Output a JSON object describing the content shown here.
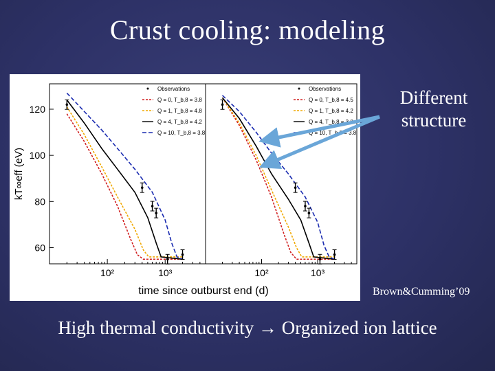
{
  "slide": {
    "title": "Crust cooling: modeling",
    "annotation_line1": "Different",
    "annotation_line2": "structure",
    "credit": "Brown&Cumming’09",
    "footer_left": "High thermal conductivity",
    "footer_arrow": "→",
    "footer_right": "Organized ion lattice",
    "arrow_color": "#6aa6d8"
  },
  "chart_data": [
    {
      "type": "line",
      "panel": "left",
      "xlabel": "time since outburst end (d)",
      "ylabel": "kT∞eff (eV)",
      "x_scale": "log",
      "xlim": [
        10,
        5000
      ],
      "ylim": [
        53,
        131
      ],
      "yticks": [
        60,
        80,
        100,
        120
      ],
      "xticks": [
        "10²",
        "10³"
      ],
      "legend_position": "top-right",
      "legend": [
        "Observations",
        "Q = 0, T_b,8 = 3.8",
        "Q = 1, T_b,8 = 4.8",
        "Q = 4, T_b,8 = 4.2",
        "Q = 10, T_b,8 = 3.8"
      ],
      "series": [
        {
          "name": "Q = 0, T_b,8 = 3.8",
          "color": "#d11f1f",
          "dash": "3,2",
          "x": [
            20,
            40,
            80,
            150,
            250,
            330,
            420,
            2000
          ],
          "y": [
            118,
            106,
            92,
            78,
            64,
            57,
            55,
            55
          ]
        },
        {
          "name": "Q = 1, T_b,8 = 4.8",
          "color": "#f0a800",
          "dash": "3,2",
          "x": [
            20,
            40,
            80,
            150,
            300,
            420,
            520,
            2000
          ],
          "y": [
            121,
            109,
            95,
            82,
            68,
            59,
            56,
            56
          ]
        },
        {
          "name": "Q = 4, T_b,8 = 4.2",
          "color": "#000000",
          "dash": "",
          "x": [
            20,
            40,
            80,
            150,
            300,
            500,
            700,
            850,
            2000
          ],
          "y": [
            124,
            114,
            103,
            94,
            84,
            73,
            62,
            56,
            55
          ]
        },
        {
          "name": "Q = 10, T_b,8 = 3.8",
          "color": "#1a2bb0",
          "dash": "6,3",
          "x": [
            20,
            40,
            80,
            150,
            300,
            600,
            1000,
            1300,
            1600,
            2000
          ],
          "y": [
            127,
            119,
            111,
            103,
            94,
            84,
            72,
            62,
            56,
            55
          ]
        }
      ],
      "observations": {
        "x": [
          20,
          400,
          600,
          700,
          1100,
          2000
        ],
        "y": [
          122,
          86,
          78,
          75,
          55,
          57
        ]
      }
    },
    {
      "type": "line",
      "panel": "right",
      "xlabel": "time since outburst end (d)",
      "ylabel": "",
      "x_scale": "log",
      "xlim": [
        10,
        5000
      ],
      "ylim": [
        53,
        131
      ],
      "xticks": [
        "10²",
        "10³"
      ],
      "legend_position": "top-right",
      "legend": [
        "Observations",
        "Q = 0, T_b,8 = 4.5",
        "Q = 1, T_b,8 = 4.2",
        "Q = 4, T_b,8 = 3.8",
        "Q = 10, T_b,8 = 3.8"
      ],
      "series": [
        {
          "name": "Q = 0, T_b,8 = 4.5",
          "color": "#d11f1f",
          "dash": "3,2",
          "x": [
            20,
            40,
            80,
            150,
            250,
            330,
            420,
            2000
          ],
          "y": [
            125,
            113,
            98,
            82,
            66,
            58,
            55,
            55
          ]
        },
        {
          "name": "Q = 1, T_b,8 = 4.2",
          "color": "#f0a800",
          "dash": "3,2",
          "x": [
            20,
            40,
            80,
            150,
            300,
            420,
            520,
            2000
          ],
          "y": [
            125,
            114,
            100,
            85,
            69,
            60,
            56,
            56
          ]
        },
        {
          "name": "Q = 4, T_b,8 = 3.8",
          "color": "#000000",
          "dash": "",
          "x": [
            20,
            40,
            80,
            150,
            300,
            500,
            700,
            850,
            2000
          ],
          "y": [
            125,
            116,
            104,
            92,
            81,
            72,
            62,
            56,
            55
          ]
        },
        {
          "name": "Q = 10, T_b,8 = 3.8",
          "color": "#1a2bb0",
          "dash": "6,3",
          "x": [
            20,
            40,
            80,
            150,
            300,
            600,
            1000,
            1300,
            1600,
            2000
          ],
          "y": [
            126,
            119,
            110,
            101,
            92,
            82,
            71,
            61,
            56,
            55
          ]
        }
      ],
      "observations": {
        "x": [
          20,
          400,
          600,
          700,
          1100,
          2000
        ],
        "y": [
          122,
          86,
          78,
          75,
          55,
          57
        ]
      }
    }
  ]
}
